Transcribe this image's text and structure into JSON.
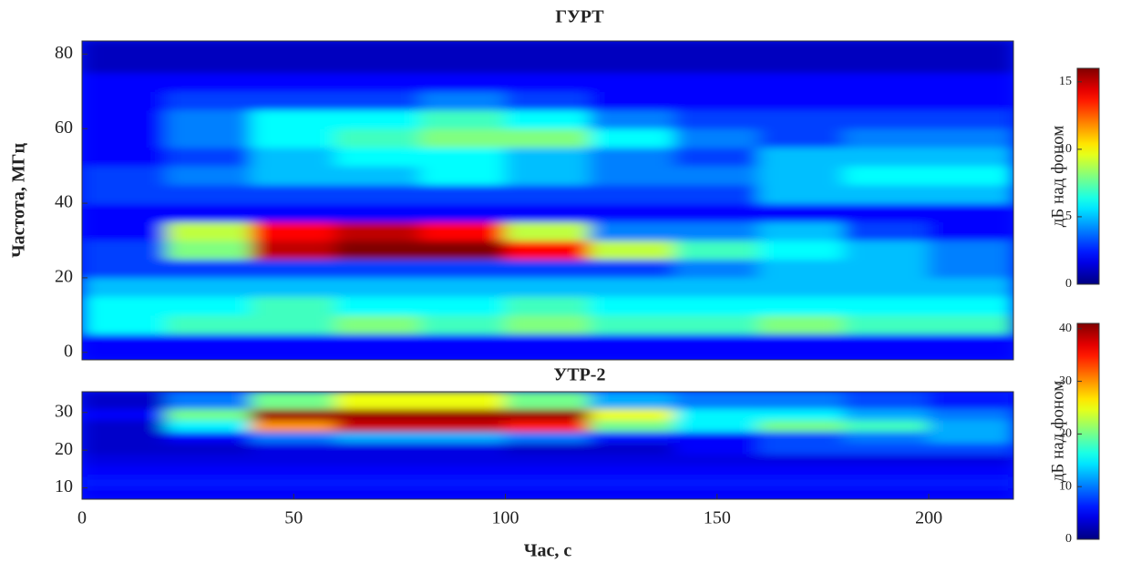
{
  "chart_data": [
    {
      "type": "heatmap",
      "title": "ГУРТ",
      "ylabel": "Частота, МГц",
      "colormap": "jet",
      "xbins": [
        0,
        20,
        40,
        60,
        80,
        100,
        120,
        140,
        160,
        180,
        200,
        220
      ],
      "ybins": [
        -2,
        5,
        10,
        15,
        20,
        25,
        30,
        35,
        40,
        45,
        50,
        55,
        60,
        65,
        70,
        75,
        80,
        83.5
      ],
      "z": [
        [
          2,
          2,
          2,
          2,
          2,
          2,
          2,
          2,
          2,
          2,
          2
        ],
        [
          6,
          7,
          7,
          8,
          7,
          8,
          7,
          7,
          8,
          7,
          7
        ],
        [
          6,
          6,
          7,
          6,
          6,
          7,
          6,
          6,
          6,
          6,
          6
        ],
        [
          5,
          5,
          5,
          5,
          5,
          5,
          5,
          5,
          5,
          5,
          5
        ],
        [
          3,
          3,
          3,
          3,
          3,
          3,
          3,
          4,
          5,
          5,
          4
        ],
        [
          3,
          8,
          15,
          16,
          16,
          14,
          9,
          7,
          6,
          5,
          4
        ],
        [
          2,
          9,
          14,
          15,
          14,
          9,
          4,
          4,
          5,
          3,
          2
        ],
        [
          2,
          2,
          2,
          2,
          2,
          2,
          2,
          2,
          2,
          2,
          2
        ],
        [
          3,
          3,
          3,
          3,
          3,
          3,
          3,
          3,
          5,
          5,
          5
        ],
        [
          3,
          4,
          5,
          5,
          6,
          5,
          4,
          4,
          5,
          6,
          6
        ],
        [
          2,
          3,
          5,
          6,
          6,
          5,
          4,
          3,
          5,
          5,
          5
        ],
        [
          2,
          4,
          6,
          7,
          8,
          8,
          6,
          4,
          3,
          4,
          4
        ],
        [
          2,
          4,
          6,
          6,
          7,
          6,
          4,
          3,
          3,
          3,
          3
        ],
        [
          2,
          3,
          3,
          3,
          4,
          3,
          2,
          2,
          2,
          2,
          2
        ],
        [
          2,
          2,
          2,
          2,
          2,
          2,
          2,
          2,
          2,
          2,
          2
        ],
        [
          1,
          1,
          1,
          1,
          1,
          1,
          1,
          1,
          1,
          1,
          1
        ],
        [
          1,
          1,
          1,
          1,
          1,
          1,
          1,
          1,
          1,
          1,
          1
        ]
      ],
      "xlim": [
        0,
        220
      ],
      "ylim": [
        -2,
        83.5
      ],
      "yticks": [
        0,
        20,
        40,
        60,
        80
      ],
      "colorbar": {
        "label": "дБ над фоном",
        "lim": [
          0,
          16
        ],
        "ticks": [
          0,
          5,
          10,
          15
        ]
      }
    },
    {
      "type": "heatmap",
      "title": "УТР-2",
      "xlabel": "Час, с",
      "colormap": "jet",
      "xbins": [
        0,
        20,
        40,
        60,
        80,
        100,
        120,
        140,
        160,
        180,
        200,
        220
      ],
      "ybins": [
        7,
        10,
        13,
        16,
        19,
        22,
        25,
        28,
        31,
        35.5
      ],
      "z": [
        [
          5,
          5,
          5,
          5,
          5,
          5,
          5,
          5,
          5,
          5,
          5
        ],
        [
          6,
          6,
          6,
          6,
          6,
          6,
          6,
          6,
          6,
          6,
          6
        ],
        [
          5,
          5,
          5,
          5,
          5,
          5,
          5,
          5,
          5,
          5,
          5
        ],
        [
          4,
          4,
          4,
          4,
          4,
          4,
          4,
          4,
          4,
          4,
          4
        ],
        [
          3,
          3,
          4,
          4,
          4,
          3,
          3,
          5,
          8,
          8,
          8
        ],
        [
          3,
          5,
          10,
          12,
          12,
          10,
          6,
          5,
          8,
          10,
          12
        ],
        [
          3,
          15,
          30,
          38,
          38,
          35,
          20,
          15,
          20,
          18,
          12
        ],
        [
          5,
          20,
          40,
          40,
          40,
          40,
          25,
          15,
          15,
          12,
          10
        ],
        [
          3,
          10,
          20,
          25,
          25,
          20,
          12,
          10,
          10,
          8,
          6
        ]
      ],
      "xlim": [
        0,
        220
      ],
      "ylim": [
        7,
        35.5
      ],
      "yticks": [
        10,
        20,
        30
      ],
      "xticks": [
        0,
        50,
        100,
        150,
        200
      ],
      "colorbar": {
        "label": "дБ над фоном",
        "lim": [
          0,
          41
        ],
        "ticks": [
          0,
          10,
          20,
          30,
          40
        ]
      }
    }
  ]
}
